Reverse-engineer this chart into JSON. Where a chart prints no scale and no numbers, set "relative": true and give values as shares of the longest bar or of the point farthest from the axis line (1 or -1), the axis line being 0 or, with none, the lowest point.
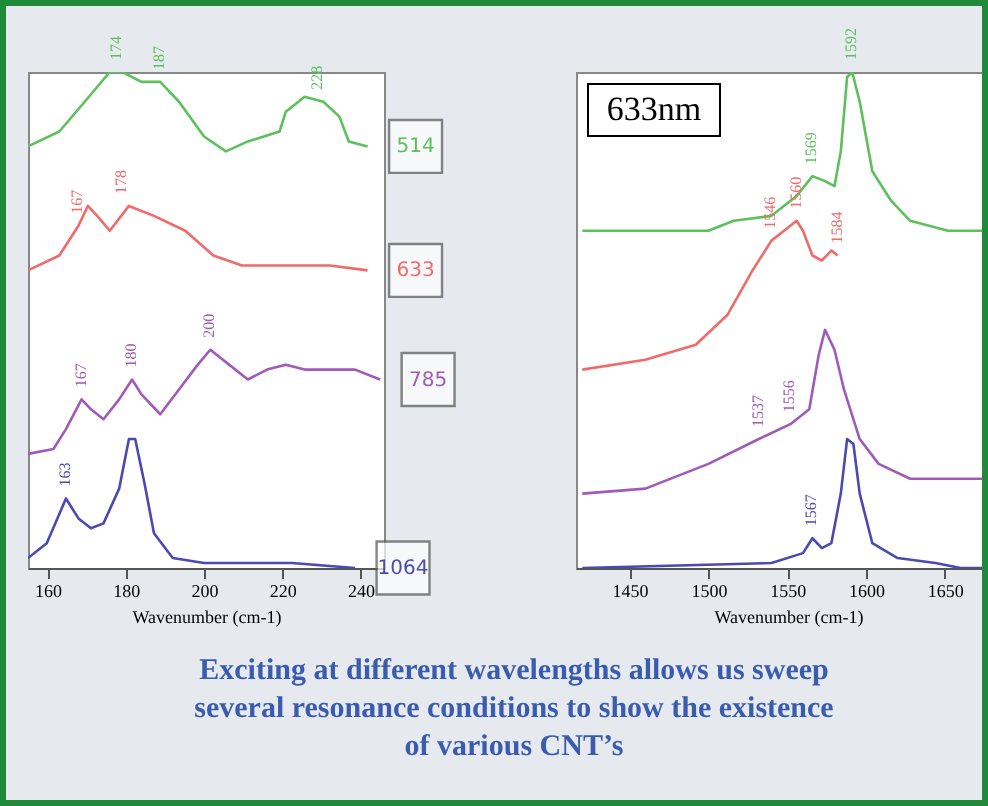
{
  "chart_data": [
    {
      "type": "line",
      "title": "Exciting at different wavelengths allows us sweep several resonance conditions to show the existence of various CNT’s",
      "xlabel": "Wavenumber (cm-1)",
      "relative": true,
      "xlim": [
        155,
        246
      ],
      "xticks": [
        160,
        180,
        200,
        220,
        240
      ],
      "grid": false,
      "series": [
        {
          "name": "514",
          "color": "#5cc05c",
          "x": [
            155.0,
            163.0,
            169.5,
            175.9,
            179.1,
            184.0,
            188.8,
            193.6,
            200.0,
            205.6,
            211.2,
            219.3,
            220.9,
            225.7,
            230.5,
            234.6,
            237.0,
            241.8
          ],
          "values": [
            0.85,
            0.88,
            0.94,
            1.0,
            1.0,
            0.98,
            0.98,
            0.94,
            0.87,
            0.84,
            0.86,
            0.88,
            0.92,
            0.95,
            0.94,
            0.91,
            0.86,
            0.85
          ]
        },
        {
          "name": "633",
          "color": "#f06a6a",
          "x": [
            155.0,
            163.0,
            167.9,
            170.3,
            172.7,
            175.9,
            180.8,
            187.2,
            195.2,
            202.4,
            209.7,
            229.0,
            232.2,
            241.8
          ],
          "values": [
            0.6,
            0.63,
            0.69,
            0.73,
            0.71,
            0.68,
            0.73,
            0.71,
            0.68,
            0.63,
            0.61,
            0.61,
            0.61,
            0.6
          ]
        },
        {
          "name": "785",
          "color": "#a05ab8",
          "x": [
            155.0,
            161.5,
            164.7,
            168.7,
            171.1,
            174.3,
            178.3,
            181.6,
            184.0,
            188.8,
            193.6,
            198.4,
            201.6,
            206.4,
            211.2,
            216.1,
            220.9,
            225.7,
            232.2,
            238.6,
            245.0
          ],
          "values": [
            0.23,
            0.24,
            0.28,
            0.34,
            0.32,
            0.3,
            0.34,
            0.38,
            0.35,
            0.31,
            0.36,
            0.41,
            0.44,
            0.41,
            0.38,
            0.4,
            0.41,
            0.4,
            0.4,
            0.4,
            0.38
          ]
        },
        {
          "name": "1064",
          "color": "#4a4ab0",
          "x": [
            155.0,
            159.8,
            164.7,
            167.9,
            171.1,
            174.3,
            178.3,
            180.8,
            182.4,
            184.8,
            187.2,
            192.0,
            200.0,
            222.5,
            238.6
          ],
          "values": [
            0.02,
            0.05,
            0.14,
            0.1,
            0.08,
            0.09,
            0.16,
            0.26,
            0.26,
            0.17,
            0.07,
            0.02,
            0.01,
            0.01,
            0.0
          ]
        }
      ],
      "annotations": [
        {
          "text": "174",
          "x": 177.8,
          "y": 1.0
        },
        {
          "text": "187",
          "x": 188.8,
          "y": 0.98
        },
        {
          "text": "228",
          "x": 229.2,
          "y": 0.94
        },
        {
          "text": "167",
          "x": 167.9,
          "y": 0.69
        },
        {
          "text": "178",
          "x": 179.1,
          "y": 0.73
        },
        {
          "text": "167",
          "x": 168.7,
          "y": 0.34
        },
        {
          "text": "180",
          "x": 181.6,
          "y": 0.38
        },
        {
          "text": "200",
          "x": 201.6,
          "y": 0.44
        },
        {
          "text": "163",
          "x": 164.7,
          "y": 0.14
        }
      ]
    },
    {
      "type": "line",
      "xlabel": "Wavenumber (cm-1)",
      "relative": true,
      "xlim": [
        1416,
        1685
      ],
      "xticks": [
        1450,
        1500,
        1550,
        1600,
        1650
      ],
      "grid": false,
      "series": [
        {
          "color": "#5cc05c",
          "x": [
            1420,
            1500,
            1516,
            1540,
            1556,
            1566,
            1574,
            1580,
            1584,
            1588,
            1591.2,
            1596,
            1604,
            1616,
            1628,
            1652,
            1684
          ],
          "values": [
            0.68,
            0.68,
            0.7,
            0.71,
            0.75,
            0.79,
            0.78,
            0.77,
            0.84,
            0.99,
            1.0,
            0.94,
            0.8,
            0.74,
            0.7,
            0.68,
            0.68
          ]
        },
        {
          "color": "#f06a6a",
          "x": [
            1420,
            1460,
            1492,
            1512,
            1528,
            1540,
            1548,
            1556,
            1560,
            1566,
            1572,
            1578,
            1582
          ],
          "values": [
            0.4,
            0.42,
            0.45,
            0.51,
            0.6,
            0.66,
            0.68,
            0.7,
            0.68,
            0.63,
            0.62,
            0.64,
            0.63
          ]
        },
        {
          "color": "#a05ab8",
          "x": [
            1420,
            1460,
            1500,
            1532,
            1552,
            1564,
            1570,
            1574,
            1580,
            1586,
            1596,
            1608,
            1628,
            1684
          ],
          "values": [
            0.15,
            0.16,
            0.21,
            0.26,
            0.29,
            0.32,
            0.43,
            0.48,
            0.44,
            0.36,
            0.26,
            0.21,
            0.18,
            0.18
          ]
        },
        {
          "color": "#4a4ab0",
          "x": [
            1420,
            1540,
            1560,
            1566,
            1572,
            1578,
            1584,
            1588,
            1592,
            1596,
            1604,
            1620,
            1644,
            1660,
            1684
          ],
          "values": [
            0.0,
            0.01,
            0.03,
            0.06,
            0.04,
            0.05,
            0.15,
            0.26,
            0.25,
            0.15,
            0.05,
            0.02,
            0.01,
            0.0,
            0.0
          ]
        }
      ],
      "annotations": [
        "633nm",
        {
          "text": "1592",
          "x": 1591.2,
          "y": 1.0
        },
        {
          "text": "1569",
          "x": 1566,
          "y": 0.79
        },
        {
          "text": "1546",
          "x": 1540,
          "y": 0.66
        },
        {
          "text": "1560",
          "x": 1556,
          "y": 0.7
        },
        {
          "text": "1584",
          "x": 1582,
          "y": 0.63
        },
        {
          "text": "1537",
          "x": 1532,
          "y": 0.26
        },
        {
          "text": "1556",
          "x": 1552,
          "y": 0.29
        },
        {
          "text": "1567",
          "x": 1566,
          "y": 0.06
        }
      ]
    }
  ]
}
